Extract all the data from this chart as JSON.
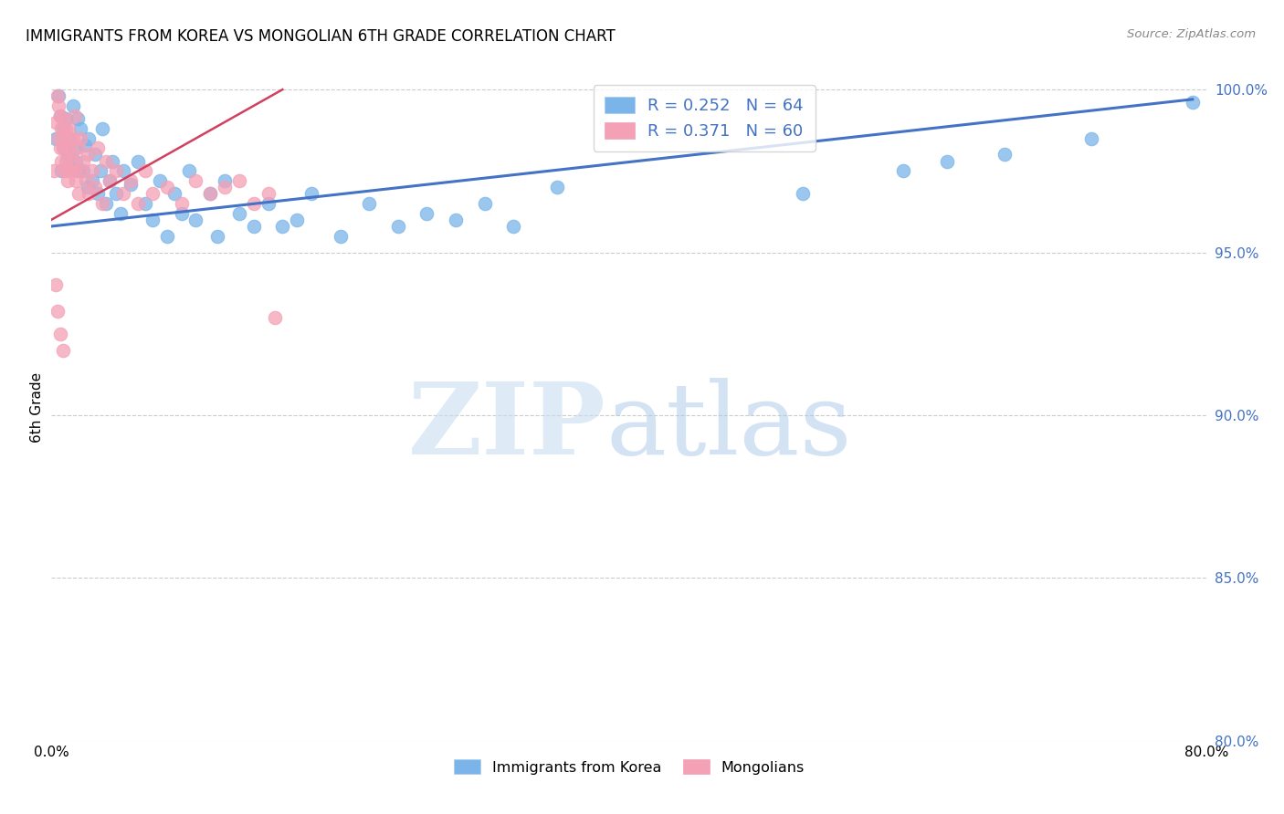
{
  "title": "IMMIGRANTS FROM KOREA VS MONGOLIAN 6TH GRADE CORRELATION CHART",
  "source": "Source: ZipAtlas.com",
  "ylabel": "6th Grade",
  "xlim": [
    0.0,
    0.8
  ],
  "ylim": [
    0.8,
    1.005
  ],
  "xticks": [
    0.0,
    0.1,
    0.2,
    0.3,
    0.4,
    0.5,
    0.6,
    0.7,
    0.8
  ],
  "xticklabels": [
    "0.0%",
    "",
    "",
    "",
    "",
    "",
    "",
    "",
    "80.0%"
  ],
  "yticks": [
    0.8,
    0.85,
    0.9,
    0.95,
    1.0
  ],
  "yticklabels": [
    "80.0%",
    "85.0%",
    "90.0%",
    "95.0%",
    "100.0%"
  ],
  "korea_color": "#7ab4e8",
  "mongolia_color": "#f4a0b5",
  "korea_R": 0.252,
  "korea_N": 64,
  "mongolia_R": 0.371,
  "mongolia_N": 60,
  "korea_line_color": "#4472c4",
  "mongolia_line_color": "#d04060",
  "legend_label_korea": "Immigrants from Korea",
  "legend_label_mongolia": "Mongolians",
  "korea_line_x": [
    0.0,
    0.79
  ],
  "korea_line_y": [
    0.958,
    0.997
  ],
  "mongolia_line_x": [
    0.0,
    0.16
  ],
  "mongolia_line_y": [
    0.96,
    1.0
  ],
  "korea_scatter_x": [
    0.003,
    0.005,
    0.006,
    0.007,
    0.008,
    0.009,
    0.01,
    0.011,
    0.012,
    0.013,
    0.015,
    0.016,
    0.017,
    0.018,
    0.019,
    0.02,
    0.022,
    0.023,
    0.025,
    0.026,
    0.028,
    0.03,
    0.032,
    0.034,
    0.035,
    0.038,
    0.04,
    0.042,
    0.045,
    0.048,
    0.05,
    0.055,
    0.06,
    0.065,
    0.07,
    0.075,
    0.08,
    0.085,
    0.09,
    0.095,
    0.1,
    0.11,
    0.115,
    0.12,
    0.13,
    0.14,
    0.15,
    0.16,
    0.17,
    0.18,
    0.2,
    0.22,
    0.24,
    0.26,
    0.28,
    0.3,
    0.32,
    0.35,
    0.52,
    0.59,
    0.62,
    0.66,
    0.72,
    0.79
  ],
  "korea_scatter_y": [
    0.985,
    0.998,
    0.992,
    0.975,
    0.988,
    0.982,
    0.991,
    0.979,
    0.985,
    0.976,
    0.995,
    0.982,
    0.978,
    0.991,
    0.975,
    0.988,
    0.975,
    0.983,
    0.97,
    0.985,
    0.972,
    0.98,
    0.968,
    0.975,
    0.988,
    0.965,
    0.972,
    0.978,
    0.968,
    0.962,
    0.975,
    0.971,
    0.978,
    0.965,
    0.96,
    0.972,
    0.955,
    0.968,
    0.962,
    0.975,
    0.96,
    0.968,
    0.955,
    0.972,
    0.962,
    0.958,
    0.965,
    0.958,
    0.96,
    0.968,
    0.955,
    0.965,
    0.958,
    0.962,
    0.96,
    0.965,
    0.958,
    0.97,
    0.968,
    0.975,
    0.978,
    0.98,
    0.985,
    0.996
  ],
  "mongolia_scatter_x": [
    0.002,
    0.003,
    0.004,
    0.005,
    0.005,
    0.006,
    0.006,
    0.007,
    0.007,
    0.008,
    0.008,
    0.009,
    0.009,
    0.01,
    0.01,
    0.011,
    0.011,
    0.012,
    0.012,
    0.013,
    0.013,
    0.014,
    0.015,
    0.015,
    0.016,
    0.016,
    0.017,
    0.018,
    0.019,
    0.02,
    0.02,
    0.022,
    0.024,
    0.025,
    0.026,
    0.028,
    0.03,
    0.032,
    0.035,
    0.038,
    0.04,
    0.045,
    0.05,
    0.055,
    0.06,
    0.065,
    0.07,
    0.08,
    0.09,
    0.1,
    0.11,
    0.12,
    0.13,
    0.14,
    0.15,
    0.003,
    0.004,
    0.006,
    0.008,
    0.155
  ],
  "mongolia_scatter_y": [
    0.975,
    0.99,
    0.998,
    0.995,
    0.985,
    0.992,
    0.982,
    0.988,
    0.978,
    0.991,
    0.982,
    0.985,
    0.975,
    0.988,
    0.978,
    0.982,
    0.972,
    0.988,
    0.975,
    0.985,
    0.975,
    0.98,
    0.978,
    0.985,
    0.975,
    0.992,
    0.972,
    0.982,
    0.968,
    0.985,
    0.975,
    0.978,
    0.972,
    0.98,
    0.968,
    0.975,
    0.97,
    0.982,
    0.965,
    0.978,
    0.972,
    0.975,
    0.968,
    0.972,
    0.965,
    0.975,
    0.968,
    0.97,
    0.965,
    0.972,
    0.968,
    0.97,
    0.972,
    0.965,
    0.968,
    0.94,
    0.932,
    0.925,
    0.92,
    0.93
  ]
}
